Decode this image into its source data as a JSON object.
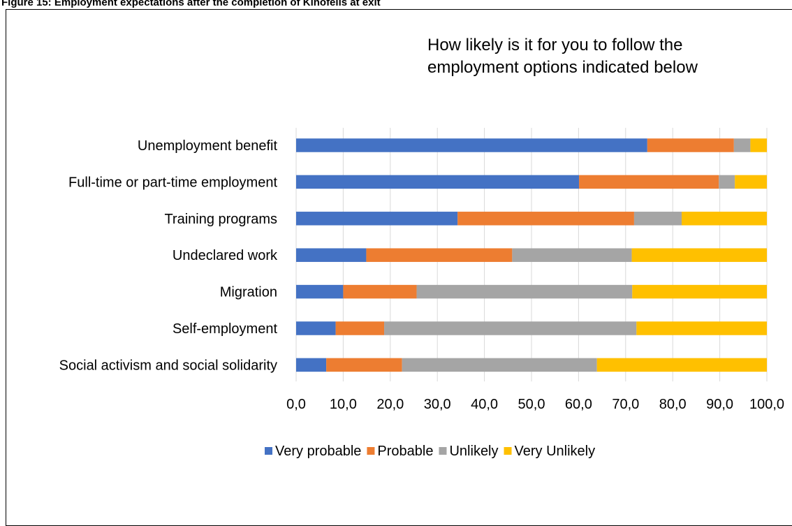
{
  "caption": "Figure 15: Employment expectations after the completion of Kinofelis at exit",
  "chart_data": {
    "type": "bar",
    "orientation": "horizontal",
    "stacked": true,
    "title": "How likely is it for you to follow the employment options indicated below",
    "title_lines": [
      "How likely is it for you to follow the",
      "employment options indicated below"
    ],
    "categories": [
      "Unemployment benefit",
      "Full-time or part-time employment",
      "Training programs",
      "Undeclared work",
      "Migration",
      "Self-employment",
      "Social activism and social solidarity"
    ],
    "series": [
      {
        "name": "Very probable",
        "color": "#4472C4",
        "values": [
          74.6,
          60.1,
          34.3,
          14.9,
          10.0,
          8.4,
          6.4
        ]
      },
      {
        "name": "Probable",
        "color": "#ED7D31",
        "values": [
          18.4,
          29.7,
          37.5,
          31.0,
          15.6,
          10.3,
          16.1
        ]
      },
      {
        "name": "Unlikely",
        "color": "#A5A5A5",
        "values": [
          3.5,
          3.4,
          10.1,
          25.4,
          45.8,
          53.6,
          41.4
        ]
      },
      {
        "name": "Very Unlikely",
        "color": "#FFC000",
        "values": [
          3.5,
          6.8,
          18.1,
          28.7,
          28.6,
          27.7,
          36.1
        ]
      }
    ],
    "xlim": [
      0,
      100
    ],
    "xticks": [
      "0,0",
      "10,0",
      "20,0",
      "30,0",
      "40,0",
      "50,0",
      "60,0",
      "70,0",
      "80,0",
      "90,0",
      "100,0"
    ],
    "grid": "vertical",
    "legend": "bottom"
  }
}
